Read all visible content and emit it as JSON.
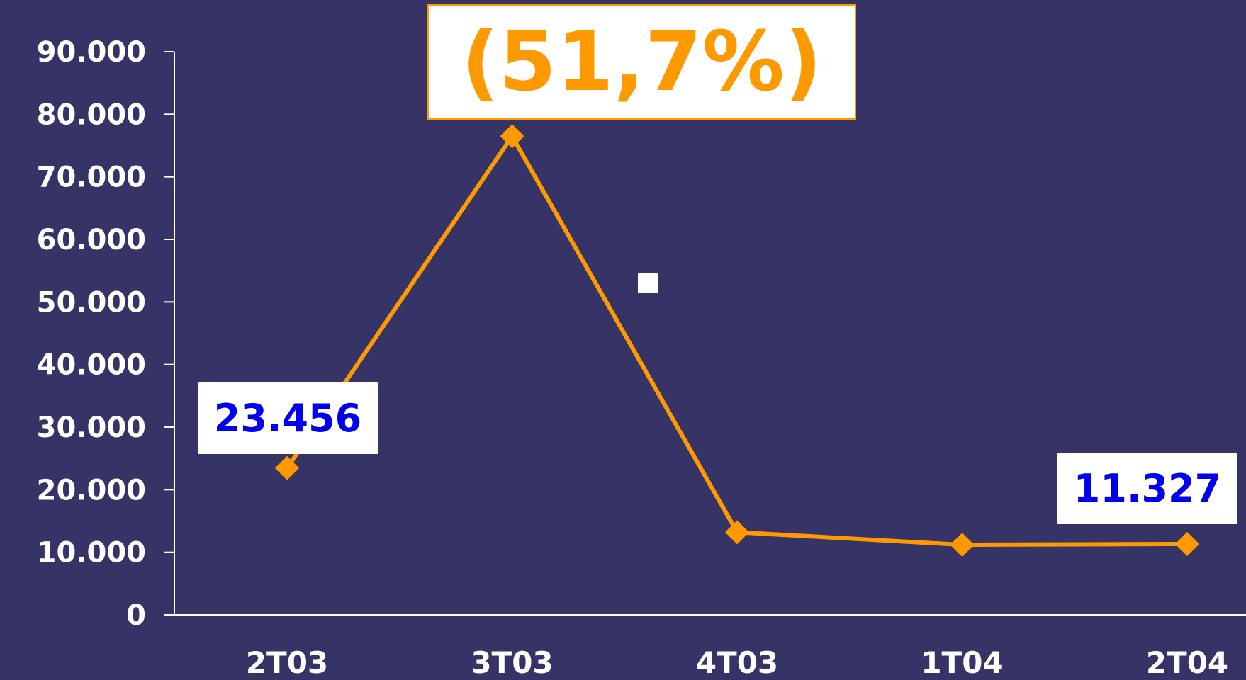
{
  "chart_data": {
    "type": "line",
    "categories": [
      "2T03",
      "3T03",
      "4T03",
      "1T04",
      "2T04"
    ],
    "series": [
      {
        "values": [
          23456,
          76500,
          13200,
          11200,
          11327
        ]
      }
    ],
    "ylim": [
      0,
      90000
    ],
    "yticks": [
      "0",
      "10.000",
      "20.000",
      "30.000",
      "40.000",
      "50.000",
      "60.000",
      "70.000",
      "80.000",
      "90.000"
    ],
    "ytick_values": [
      0,
      10000,
      20000,
      30000,
      40000,
      50000,
      60000,
      70000,
      80000,
      90000
    ],
    "grid": false,
    "annotations": {
      "peak": "(51,7%)",
      "start": "23.456",
      "end": "11.327"
    }
  },
  "colors": {
    "background": "#363366",
    "line": "#ff9900",
    "axis": "#ffffff",
    "callout_text": "#0000ee"
  }
}
